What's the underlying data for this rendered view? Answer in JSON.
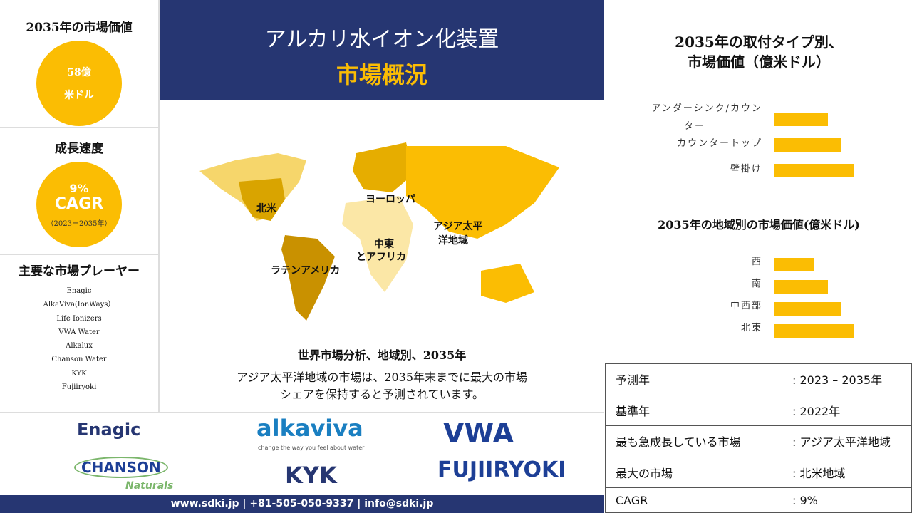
{
  "left": {
    "market_value_title": "2035年の市場価値",
    "market_value_line1": "58億",
    "market_value_line2": "米ドル",
    "growth_title": "成長速度",
    "growth_pct": "9%",
    "growth_cagr": "CAGR",
    "growth_period": "（2023ー2035年）",
    "players_title": "主要な市場プレーヤー",
    "players": [
      "Enagic",
      "AlkaViva(IonWays）",
      "Life Ionizers",
      "VWA Water",
      "Alkalux",
      "Chanson Water",
      "KYK",
      "Fujiiryoki"
    ]
  },
  "header": {
    "title": "アルカリ水イオン化装置",
    "subtitle": "市場概況"
  },
  "map": {
    "regions": [
      "北米",
      "ヨーロッパ",
      "アジア太平",
      "洋地域",
      "中東",
      "とアフリカ",
      "ラテンアメリカ"
    ],
    "caption_title": "世界市場分析、地域別、2035年",
    "caption_line1": "アジア太平洋地域の市場は、2035年末までに最大の市場",
    "caption_line2": "シェアを保持すると予測されています。"
  },
  "chart_data": [
    {
      "type": "bar",
      "orientation": "horizontal",
      "title": "2035年の取付タイプ別、市場価値（億米ドル）",
      "categories": [
        "アンダーシンク/カウンター",
        "カウンタートップ",
        "壁掛け"
      ],
      "values": [
        2,
        2.5,
        3
      ],
      "color": "#fbbd03"
    },
    {
      "type": "bar",
      "orientation": "horizontal",
      "title": "2035年の地域別の市場価値(億米ドル)",
      "categories": [
        "西",
        "南",
        "中西部",
        "北東"
      ],
      "values": [
        1.5,
        2,
        2.5,
        3
      ],
      "color": "#fbbd03"
    }
  ],
  "chart_titles": {
    "c1_line1": "2035年の取付タイプ別、",
    "c1_line2": "市場価値（億米ドル）",
    "c1_label0a": "アンダーシンク/カウン",
    "c1_label0b": "ター"
  },
  "info_table": [
    [
      "予測年",
      ": 2023 – 2035年"
    ],
    [
      "基準年",
      ": 2022年"
    ],
    [
      "最も急成長している市場",
      ": アジア太平洋地域"
    ],
    [
      "最大の市場",
      ": 北米地域"
    ],
    [
      "CAGR",
      ": 9%"
    ]
  ],
  "logos": [
    "Enagic",
    "alkaviva",
    "change the way you feel about water",
    "VWA",
    "CHANSON",
    "Naturals",
    "KYK",
    "FUJIIRYOKI"
  ],
  "footer": "www.sdki.jp | +81-505-050-9337 | info@sdki.jp",
  "colors": {
    "navy": "#263672",
    "accent": "#fbbd03"
  }
}
